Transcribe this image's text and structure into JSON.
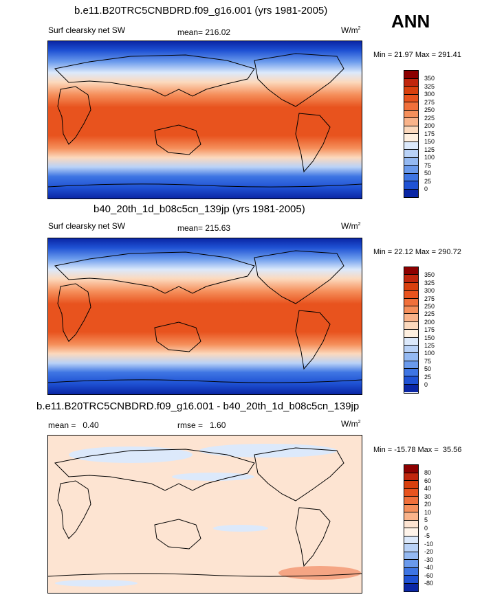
{
  "season": "ANN",
  "panels": [
    {
      "title": "b.e11.B20TRC5CNBDRD.f09_g16.001 (yrs 1981-2005)",
      "left": "Surf clearsky net SW",
      "center": "mean= 216.02",
      "units": "W/m",
      "units_exp": "2",
      "minmax": "Min =  21.97 Max = 291.41",
      "levels": [
        "350",
        "325",
        "300",
        "275",
        "250",
        "225",
        "200",
        "175",
        "150",
        "125",
        "100",
        "75",
        "50",
        "25",
        "0"
      ],
      "colors": [
        "#8c0000",
        "#c0260d",
        "#d8400e",
        "#e8531e",
        "#f0703b",
        "#f58f5b",
        "#f9b38a",
        "#fcd9bd",
        "#fff0e0",
        "#dce9fb",
        "#b9d2f7",
        "#94b9f2",
        "#6a9aec",
        "#3e75e3",
        "#1f52d4",
        "#0a26a5"
      ]
    },
    {
      "title": "b40_20th_1d_b08c5cn_139jp (yrs 1981-2005)",
      "left": "Surf clearsky net SW",
      "center": "mean= 215.63",
      "units": "W/m",
      "units_exp": "2",
      "minmax": "Min =  22.12 Max = 290.72",
      "levels": [
        "350",
        "325",
        "300",
        "275",
        "250",
        "225",
        "200",
        "175",
        "150",
        "125",
        "100",
        "75",
        "50",
        "25",
        "0"
      ],
      "colors": [
        "#8c0000",
        "#c0260d",
        "#d8400e",
        "#e8531e",
        "#f0703b",
        "#f58f5b",
        "#f9b38a",
        "#fcd9bd",
        "#fff0e0",
        "#dce9fb",
        "#b9d2f7",
        "#94b9f2",
        "#6a9aec",
        "#3e75e3",
        "#1f52d4",
        "#0a26a5"
      ]
    },
    {
      "title": "b.e11.B20TRC5CNBDRD.f09_g16.001 - b40_20th_1d_b08c5cn_139jp",
      "left": "mean =   0.40",
      "center": "rmse =   1.60",
      "units": "W/m",
      "units_exp": "2",
      "minmax": "Min = -15.78 Max =  35.56",
      "levels": [
        "80",
        "60",
        "40",
        "30",
        "20",
        "10",
        "5",
        "0",
        "-5",
        "-10",
        "-20",
        "-30",
        "-40",
        "-60",
        "-80"
      ],
      "colors": [
        "#8c0000",
        "#c0260d",
        "#d8400e",
        "#e8531e",
        "#f0703b",
        "#f58f5b",
        "#f9b38a",
        "#fde4d2",
        "#fff4ea",
        "#dce9fb",
        "#b9d2f7",
        "#94b9f2",
        "#6a9aec",
        "#3e75e3",
        "#1f52d4",
        "#0a26a5"
      ]
    }
  ]
}
